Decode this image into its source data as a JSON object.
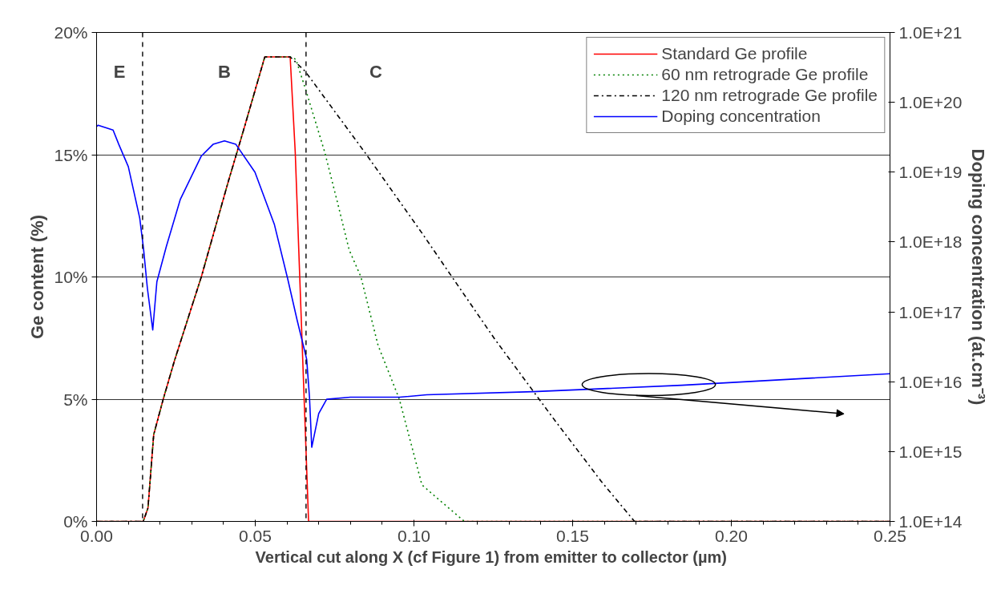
{
  "chart_data": {
    "type": "line",
    "xlabel": "Vertical cut along X (cf Figure 1) from emitter  to collector (µm)",
    "ylabel": "Ge content (%)",
    "y2label": "Doping concentration (at.cm⁻³)",
    "xlim": [
      0,
      0.25
    ],
    "xticks": [
      {
        "value": 0,
        "label": "0.00"
      },
      {
        "value": 0.05,
        "label": "0.05"
      },
      {
        "value": 0.1,
        "label": "0.10"
      },
      {
        "value": 0.15,
        "label": "0.15"
      },
      {
        "value": 0.2,
        "label": "0.20"
      },
      {
        "value": 0.25,
        "label": "0.25"
      }
    ],
    "ylim": [
      0,
      20
    ],
    "yticks": [
      {
        "value": 0,
        "label": "0%"
      },
      {
        "value": 5,
        "label": "5%"
      },
      {
        "value": 10,
        "label": "10%"
      },
      {
        "value": 15,
        "label": "15%"
      },
      {
        "value": 20,
        "label": "20%"
      }
    ],
    "y2lim": [
      100000000000000.0,
      1e+21
    ],
    "y2ticks": [
      {
        "value": 100000000000000.0,
        "label": "1.0E+14"
      },
      {
        "value": 1000000000000000.0,
        "label": "1.0E+15"
      },
      {
        "value": 1e+16,
        "label": "1.0E+16"
      },
      {
        "value": 1e+17,
        "label": "1.0E+17"
      },
      {
        "value": 1e+18,
        "label": "1.0E+18"
      },
      {
        "value": 1e+19,
        "label": "1.0E+19"
      },
      {
        "value": 1e+20,
        "label": "1.0E+20"
      },
      {
        "value": 1e+21,
        "label": "1.0E+21"
      }
    ],
    "log": "y2",
    "grid": "y",
    "legend": "top right",
    "series": [
      {
        "name": "Standard Ge profile",
        "color": "#ff0000",
        "line_style": "solid",
        "x": [
          0,
          0.0147,
          0.0162,
          0.018,
          0.021,
          0.0246,
          0.033,
          0.0415,
          0.0463,
          0.053,
          0.061,
          0.0626,
          0.0668,
          0.25
        ],
        "values": [
          0,
          0,
          0.55,
          3.55,
          5.0,
          6.6,
          10,
          13.9,
          16.0,
          19,
          19,
          15.1,
          0,
          0
        ]
      },
      {
        "name": "60 nm retrograde Ge profile",
        "color": "#008000",
        "line_style": "dotted",
        "x": [
          0,
          0.0147,
          0.0162,
          0.018,
          0.021,
          0.0246,
          0.033,
          0.0415,
          0.0463,
          0.053,
          0.061,
          0.0628,
          0.0658,
          0.0719,
          0.076,
          0.0796,
          0.0833,
          0.0887,
          0.0954,
          0.1025,
          0.106,
          0.1159,
          0.25
        ],
        "values": [
          0,
          0,
          0.55,
          3.55,
          5.0,
          6.6,
          10,
          13.9,
          16.0,
          19,
          19,
          18.9,
          17.7,
          15.1,
          13.0,
          11.1,
          10.0,
          7.2,
          5.0,
          1.5,
          1.1,
          0,
          0
        ]
      },
      {
        "name": "120 nm retrograde Ge profile",
        "color": "#000000",
        "line_style": "dashdot",
        "x": [
          0,
          0.0147,
          0.0162,
          0.018,
          0.021,
          0.0246,
          0.033,
          0.0415,
          0.0463,
          0.053,
          0.061,
          0.0658,
          0.0845,
          0.1025,
          0.112,
          0.1255,
          0.1436,
          0.159,
          0.1695,
          0.25
        ],
        "values": [
          0,
          0,
          0.55,
          3.55,
          5.0,
          6.6,
          10,
          13.9,
          16.0,
          19,
          19,
          18.4,
          15.1,
          11.8,
          10,
          7.45,
          4.27,
          1.64,
          0,
          0
        ]
      },
      {
        "name": "Doping concentration",
        "color": "#0000ff",
        "line_style": "solid",
        "axis": "y2",
        "x": [
          0,
          0.0005,
          0.0052,
          0.007,
          0.01,
          0.0136,
          0.0148,
          0.016,
          0.0177,
          0.019,
          0.022,
          0.0264,
          0.033,
          0.0367,
          0.0403,
          0.0439,
          0.0499,
          0.056,
          0.0602,
          0.0632,
          0.0662,
          0.0671,
          0.0678,
          0.07,
          0.0725,
          0.08,
          0.0955,
          0.104,
          0.1375,
          0.1844,
          0.25
        ],
        "values": [
          4.5e+19,
          4.7e+19,
          4e+19,
          2.5e+19,
          1.2e+19,
          2.2e+18,
          8e+17,
          2.2e+17,
          5.5e+16,
          2.7e+17,
          8.7e+17,
          4.1e+18,
          1.7e+19,
          2.5e+19,
          2.8e+19,
          2.5e+19,
          1e+19,
          1.8e+18,
          3e+17,
          7.6e+16,
          2.1e+16,
          5900000000000000.0,
          1150000000000000.0,
          3500000000000000.0,
          5600000000000000.0,
          6000000000000000.0,
          6000000000000000.0,
          6500000000000000.0,
          7200000000000000.0,
          8900000000000000.0,
          1.3e+16
        ]
      }
    ],
    "ref_lines": [
      {
        "axis": "x",
        "value": 0.0145,
        "line_style": "dashed",
        "color": "#000000"
      },
      {
        "axis": "x",
        "value": 0.066,
        "line_style": "dashed",
        "color": "#000000"
      }
    ],
    "annotations": [
      "E",
      "B",
      "C"
    ]
  }
}
